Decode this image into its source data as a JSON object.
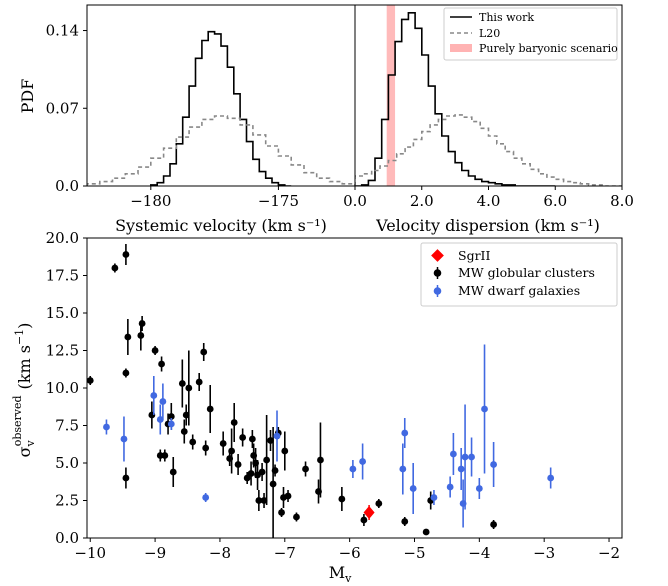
{
  "chart_data": [
    {
      "type": "line",
      "panel": "top-left",
      "xlabel": "Systemic velocity (km s⁻¹)",
      "ylabel": "PDF",
      "xlim": [
        -182.5,
        -172.0
      ],
      "ylim": [
        0,
        0.163
      ],
      "x_ticks": [
        -180,
        -175
      ],
      "x_tick_labels": [
        "−180",
        "−175"
      ],
      "y_ticks": [
        0.0,
        0.07,
        0.14
      ],
      "y_tick_labels": [
        "0.0",
        "0.07",
        "0.14"
      ],
      "series": [
        {
          "name": "This work",
          "style": "solid-step",
          "color": "#000000",
          "bin_edges": [
            -180.0,
            -179.75,
            -179.5,
            -179.25,
            -179.0,
            -178.75,
            -178.5,
            -178.25,
            -178.0,
            -177.75,
            -177.5,
            -177.25,
            -177.0,
            -176.75,
            -176.5,
            -176.25,
            -176.0,
            -175.75,
            -175.5,
            -175.25,
            -175.0,
            -174.75,
            -174.5
          ],
          "values": [
            0.001,
            0.003,
            0.009,
            0.02,
            0.038,
            0.062,
            0.09,
            0.115,
            0.131,
            0.139,
            0.137,
            0.126,
            0.107,
            0.083,
            0.06,
            0.04,
            0.024,
            0.013,
            0.007,
            0.003,
            0.001,
            0.0
          ]
        },
        {
          "name": "L20",
          "style": "dashed-step",
          "color": "#888888",
          "bin_edges": [
            -182.5,
            -182.0,
            -181.5,
            -181.0,
            -180.5,
            -180.0,
            -179.5,
            -179.0,
            -178.5,
            -178.0,
            -177.5,
            -177.0,
            -176.5,
            -176.0,
            -175.5,
            -175.0,
            -174.5,
            -174.0,
            -173.5,
            -173.0,
            -172.5,
            -172.0
          ],
          "values": [
            0.002,
            0.004,
            0.007,
            0.011,
            0.017,
            0.025,
            0.034,
            0.044,
            0.053,
            0.06,
            0.063,
            0.061,
            0.055,
            0.046,
            0.036,
            0.027,
            0.019,
            0.012,
            0.007,
            0.004,
            0.002
          ]
        }
      ]
    },
    {
      "type": "line",
      "panel": "top-right",
      "xlabel": "Velocity dispersion (km s⁻¹)",
      "xlim": [
        0.0,
        8.0
      ],
      "ylim": [
        0,
        0.163
      ],
      "x_ticks": [
        0.0,
        2.0,
        4.0,
        6.0,
        8.0
      ],
      "x_tick_labels": [
        "0.0",
        "2.0",
        "4.0",
        "6.0",
        "8.0"
      ],
      "legend_position": "top-right",
      "series": [
        {
          "name": "This work",
          "style": "solid-step",
          "color": "#000000",
          "bin_edges": [
            0.0,
            0.2,
            0.4,
            0.6,
            0.8,
            1.0,
            1.2,
            1.4,
            1.6,
            1.8,
            2.0,
            2.2,
            2.4,
            2.6,
            2.8,
            3.0,
            3.2,
            3.4,
            3.6,
            3.8,
            4.0,
            4.2,
            4.4,
            4.6,
            4.8,
            5.0,
            5.2,
            5.4,
            5.6,
            5.8,
            6.0
          ],
          "values": [
            0.0,
            0.001,
            0.005,
            0.025,
            0.06,
            0.1,
            0.13,
            0.15,
            0.156,
            0.142,
            0.118,
            0.09,
            0.065,
            0.045,
            0.031,
            0.021,
            0.014,
            0.009,
            0.006,
            0.004,
            0.003,
            0.002,
            0.001,
            0.001,
            0.0,
            0.0,
            0.0,
            0.0,
            0.0,
            0.0
          ]
        },
        {
          "name": "L20",
          "style": "dashed-step",
          "color": "#888888",
          "bin_edges": [
            0.0,
            0.25,
            0.5,
            0.75,
            1.0,
            1.25,
            1.5,
            1.75,
            2.0,
            2.25,
            2.5,
            2.75,
            3.0,
            3.25,
            3.5,
            3.75,
            4.0,
            4.25,
            4.5,
            4.75,
            5.0,
            5.25,
            5.5,
            5.75,
            6.0,
            6.25,
            6.5,
            6.75,
            7.0,
            7.25,
            7.5,
            7.75,
            8.0
          ],
          "values": [
            0.009,
            0.011,
            0.014,
            0.018,
            0.023,
            0.029,
            0.035,
            0.042,
            0.049,
            0.055,
            0.06,
            0.063,
            0.064,
            0.062,
            0.058,
            0.052,
            0.045,
            0.038,
            0.031,
            0.025,
            0.02,
            0.015,
            0.011,
            0.008,
            0.006,
            0.004,
            0.003,
            0.002,
            0.001,
            0.001,
            0.0,
            0.0
          ]
        }
      ],
      "shaded_band": {
        "name": "Purely baryonic scenario",
        "x_range": [
          0.95,
          1.2
        ],
        "color": "#ffb3b3"
      }
    },
    {
      "type": "scatter",
      "panel": "bottom",
      "xlabel": "M",
      "xlabel_sub": "v",
      "ylabel_sym": "σ",
      "ylabel_sub": "v",
      "ylabel_sup": "observed",
      "ylabel_unit": "(km s",
      "ylabel_unit_sup": "−1",
      "ylabel_unit_end": ")",
      "xlim": [
        -10.05,
        -1.8
      ],
      "ylim": [
        0.0,
        20.0
      ],
      "x_ticks": [
        -10,
        -9,
        -8,
        -7,
        -6,
        -5,
        -4,
        -3,
        -2
      ],
      "x_tick_labels": [
        "−10",
        "−9",
        "−8",
        "−7",
        "−6",
        "−5",
        "−4",
        "−3",
        "−2"
      ],
      "y_ticks": [
        0.0,
        2.5,
        5.0,
        7.5,
        10.0,
        12.5,
        15.0,
        17.5,
        20.0
      ],
      "y_tick_labels": [
        "0.0",
        "2.5",
        "5.0",
        "7.5",
        "10.0",
        "12.5",
        "15.0",
        "17.5",
        "20.0"
      ],
      "legend_position": "top-right",
      "series": [
        {
          "name": "SgrII",
          "marker": "diamond",
          "color": "#ff0000",
          "points": [
            {
              "x": -5.7,
              "y": 1.7,
              "err": 0.5
            }
          ]
        },
        {
          "name": "MW globular clusters",
          "marker": "circle",
          "color": "#000000",
          "points": [
            {
              "x": -10.0,
              "y": 10.5,
              "err": 0.3
            },
            {
              "x": -9.62,
              "y": 18.0,
              "err": 0.3
            },
            {
              "x": -9.45,
              "y": 18.9,
              "err": 0.7
            },
            {
              "x": -9.45,
              "y": 11.0,
              "err": 0.3
            },
            {
              "x": -9.45,
              "y": 4.0,
              "err": 0.7
            },
            {
              "x": -9.42,
              "y": 13.4,
              "err": 1.2
            },
            {
              "x": -9.22,
              "y": 13.5,
              "err": 1.0
            },
            {
              "x": -9.2,
              "y": 14.3,
              "err": 0.5
            },
            {
              "x": -9.05,
              "y": 8.2,
              "err": 0.9
            },
            {
              "x": -9.0,
              "y": 12.5,
              "err": 0.3
            },
            {
              "x": -8.92,
              "y": 5.5,
              "err": 0.4
            },
            {
              "x": -8.9,
              "y": 11.6,
              "err": 0.5
            },
            {
              "x": -8.85,
              "y": 5.5,
              "err": 0.4
            },
            {
              "x": -8.8,
              "y": 7.6,
              "err": 0.7
            },
            {
              "x": -8.75,
              "y": 8.1,
              "err": 0.9
            },
            {
              "x": -8.72,
              "y": 4.4,
              "err": 1.0
            },
            {
              "x": -8.58,
              "y": 10.3,
              "err": 1.6
            },
            {
              "x": -8.55,
              "y": 7.1,
              "err": 0.8
            },
            {
              "x": -8.52,
              "y": 8.2,
              "err": 0.7
            },
            {
              "x": -8.48,
              "y": 10.0,
              "err": 2.5
            },
            {
              "x": -8.42,
              "y": 6.4,
              "err": 0.5
            },
            {
              "x": -8.32,
              "y": 10.4,
              "err": 0.6
            },
            {
              "x": -8.25,
              "y": 12.4,
              "err": 0.6
            },
            {
              "x": -8.22,
              "y": 6.0,
              "err": 0.5
            },
            {
              "x": -8.15,
              "y": 8.6,
              "err": 1.6
            },
            {
              "x": -7.95,
              "y": 6.3,
              "err": 0.8
            },
            {
              "x": -7.85,
              "y": 5.3,
              "err": 0.5
            },
            {
              "x": -7.82,
              "y": 5.8,
              "err": 1.5
            },
            {
              "x": -7.78,
              "y": 7.7,
              "err": 1.3
            },
            {
              "x": -7.72,
              "y": 4.9,
              "err": 0.7
            },
            {
              "x": -7.65,
              "y": 6.7,
              "err": 0.6
            },
            {
              "x": -7.58,
              "y": 4.0,
              "err": 0.4
            },
            {
              "x": -7.52,
              "y": 4.3,
              "err": 0.8
            },
            {
              "x": -7.5,
              "y": 6.6,
              "err": 0.6
            },
            {
              "x": -7.48,
              "y": 5.5,
              "err": 0.8
            },
            {
              "x": -7.45,
              "y": 5.0,
              "err": 1.0
            },
            {
              "x": -7.42,
              "y": 4.2,
              "err": 1.0
            },
            {
              "x": -7.4,
              "y": 2.5,
              "err": 0.7
            },
            {
              "x": -7.35,
              "y": 4.4,
              "err": 0.6
            },
            {
              "x": -7.32,
              "y": 2.5,
              "err": 0.5
            },
            {
              "x": -7.28,
              "y": 5.2,
              "err": 3.0
            },
            {
              "x": -7.22,
              "y": 6.5,
              "err": 0.7
            },
            {
              "x": -7.18,
              "y": 3.6,
              "err": 3.8
            },
            {
              "x": -7.15,
              "y": 4.5,
              "err": 0.4
            },
            {
              "x": -7.1,
              "y": 7.0,
              "err": 0.4
            },
            {
              "x": -7.05,
              "y": 1.7,
              "err": 0.3
            },
            {
              "x": -7.02,
              "y": 2.7,
              "err": 0.7
            },
            {
              "x": -7.0,
              "y": 5.8,
              "err": 1.3
            },
            {
              "x": -6.95,
              "y": 2.8,
              "err": 0.4
            },
            {
              "x": -6.82,
              "y": 1.4,
              "err": 0.3
            },
            {
              "x": -6.68,
              "y": 4.6,
              "err": 0.5
            },
            {
              "x": -6.48,
              "y": 3.1,
              "err": 0.8
            },
            {
              "x": -6.45,
              "y": 5.2,
              "err": 2.5
            },
            {
              "x": -6.12,
              "y": 2.6,
              "err": 0.8
            },
            {
              "x": -5.78,
              "y": 1.2,
              "err": 0.4
            },
            {
              "x": -5.55,
              "y": 2.3,
              "err": 0.3
            },
            {
              "x": -5.15,
              "y": 1.1,
              "err": 0.3
            },
            {
              "x": -4.82,
              "y": 0.4,
              "err": 0.2
            },
            {
              "x": -4.75,
              "y": 2.5,
              "err": 0.6
            },
            {
              "x": -3.78,
              "y": 0.9,
              "err": 0.3
            }
          ]
        },
        {
          "name": "MW dwarf galaxies",
          "marker": "circle",
          "color": "#4169e1",
          "points": [
            {
              "x": -9.75,
              "y": 7.4,
              "err": 0.5
            },
            {
              "x": -9.48,
              "y": 6.6,
              "err": 1.5
            },
            {
              "x": -9.02,
              "y": 9.5,
              "err": 1.3
            },
            {
              "x": -8.92,
              "y": 7.9,
              "err": 1.0
            },
            {
              "x": -8.88,
              "y": 9.1,
              "err": 1.2
            },
            {
              "x": -8.75,
              "y": 7.6,
              "err": 0.4
            },
            {
              "x": -8.22,
              "y": 2.7,
              "err": 0.3
            },
            {
              "x": -7.12,
              "y": 6.8,
              "err": 1.7
            },
            {
              "x": -5.95,
              "y": 4.6,
              "err": 0.6
            },
            {
              "x": -5.8,
              "y": 5.1,
              "err": 1.2
            },
            {
              "x": -5.18,
              "y": 4.6,
              "err": 1.7
            },
            {
              "x": -5.15,
              "y": 7.0,
              "err": 1.0
            },
            {
              "x": -5.02,
              "y": 3.3,
              "err": 1.7
            },
            {
              "x": -4.7,
              "y": 2.7,
              "err": 0.5
            },
            {
              "x": -4.45,
              "y": 3.4,
              "err": 0.7
            },
            {
              "x": -4.4,
              "y": 5.6,
              "err": 1.4
            },
            {
              "x": -4.28,
              "y": 4.6,
              "err": 1.4
            },
            {
              "x": -4.25,
              "y": 2.3,
              "err": 1.6
            },
            {
              "x": -4.22,
              "y": 5.4,
              "err": 3.5
            },
            {
              "x": -4.12,
              "y": 5.4,
              "err": 1.3
            },
            {
              "x": -4.0,
              "y": 3.3,
              "err": 0.7
            },
            {
              "x": -3.92,
              "y": 8.6,
              "err": 4.3
            },
            {
              "x": -3.78,
              "y": 4.9,
              "err": 1.5
            },
            {
              "x": -2.9,
              "y": 4.0,
              "err": 0.7
            }
          ]
        }
      ]
    }
  ]
}
